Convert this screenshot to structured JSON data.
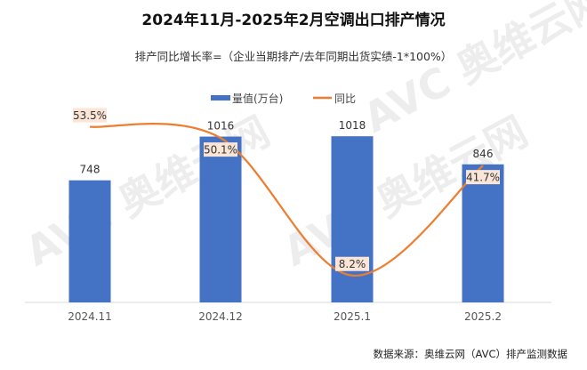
{
  "chart_data": {
    "type": "bar",
    "title": "2024年11月-2025年2月空调出口排产情况",
    "subtitle": "排产同比增长率=（企业当期排产/去年同期出货实绩-1*100%）",
    "categories": [
      "2024.11",
      "2024.12",
      "2025.1",
      "2025.2"
    ],
    "series": [
      {
        "name": "量值(万台)",
        "type": "bar",
        "values": [
          748,
          1016,
          1018,
          846
        ],
        "color": "#4472C4",
        "labels": [
          "748",
          "1016",
          "1018",
          "846"
        ]
      },
      {
        "name": "同比",
        "type": "line",
        "smooth": true,
        "values": [
          53.5,
          50.1,
          8.2,
          41.7
        ],
        "unit": "%",
        "color": "#ED7D31",
        "labels": [
          "53.5%",
          "50.1%",
          "8.2%",
          "41.7%"
        ]
      }
    ],
    "legend": "top",
    "grid": false,
    "source": "数据来源：奥维云网（AVC）排产监测数据",
    "watermark": "AVC 奥维云网 ALL VIEW CLOUD"
  }
}
